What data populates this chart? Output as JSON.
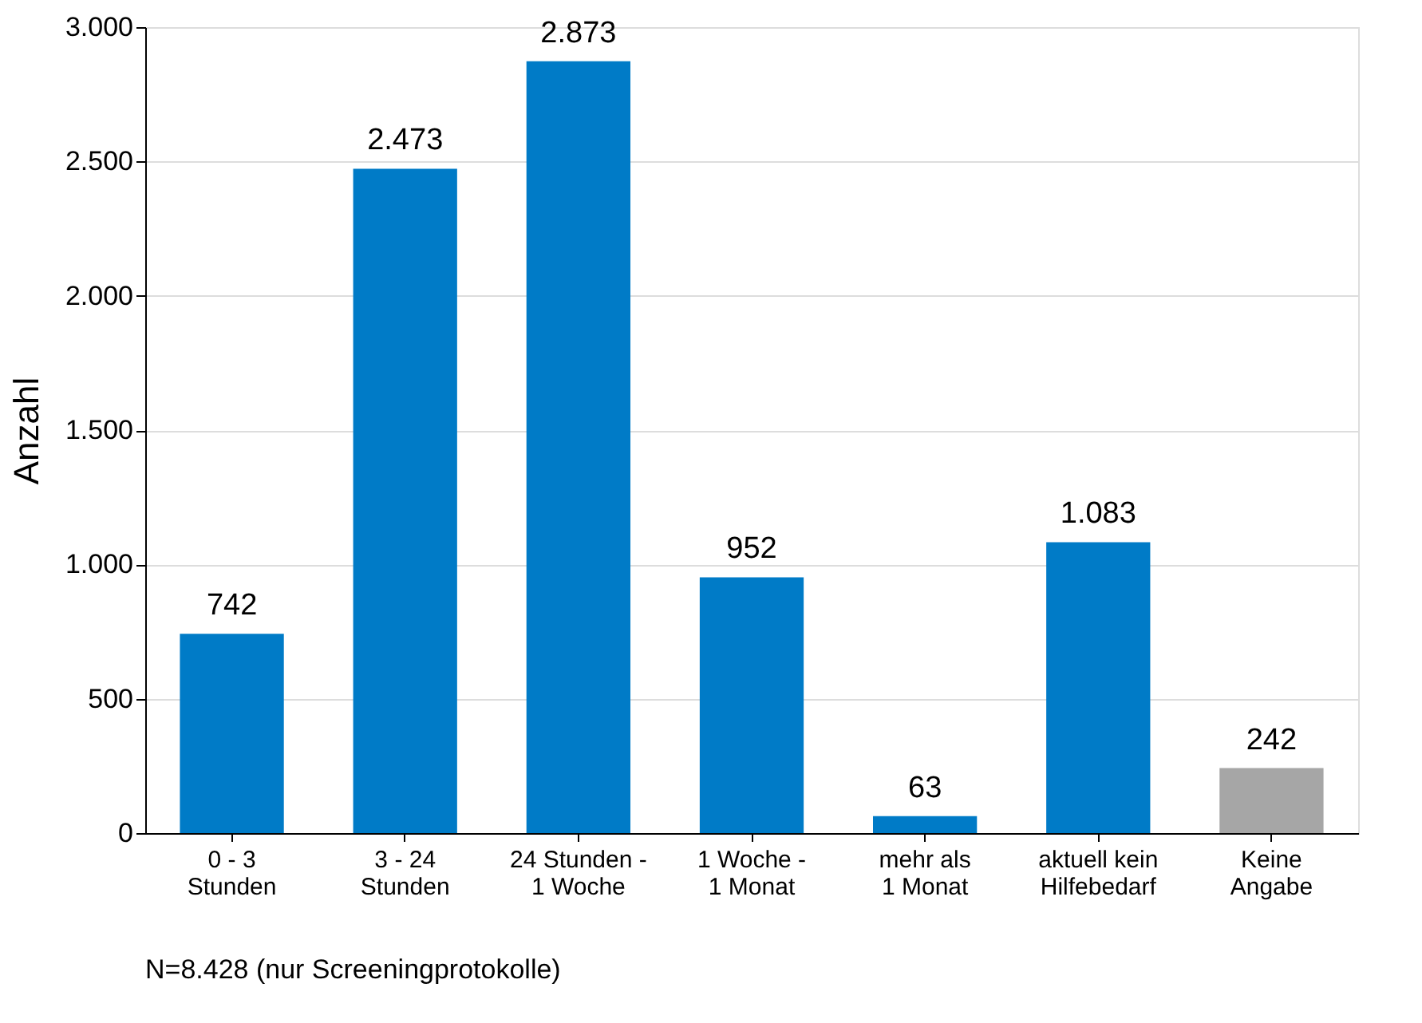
{
  "chart_data": {
    "type": "bar",
    "ylabel": "Anzahl",
    "categories": [
      "0 - 3\nStunden",
      "3 - 24\nStunden",
      "24 Stunden -\n1 Woche",
      "1 Woche -\n1 Monat",
      "mehr als\n1 Monat",
      "aktuell kein\nHilfebedarf",
      "Keine\nAngabe"
    ],
    "values": [
      742,
      2473,
      2873,
      952,
      63,
      1083,
      242
    ],
    "value_labels": [
      "742",
      "2.473",
      "2.873",
      "952",
      "63",
      "1.083",
      "242"
    ],
    "colors": [
      "#007bc7",
      "#007bc7",
      "#007bc7",
      "#007bc7",
      "#007bc7",
      "#007bc7",
      "#a6a6a6"
    ],
    "ylim": [
      0,
      3000
    ],
    "yticks": [
      0,
      500,
      {
        "value": 1000,
        "label": "1.000"
      },
      {
        "value": 1500,
        "label": "1.500"
      },
      {
        "value": 2000,
        "label": "2.000"
      },
      {
        "value": 2500,
        "label": "2.500"
      },
      {
        "value": 3000,
        "label": "3.000"
      }
    ],
    "grid": "y",
    "annotations": [
      "N=8.428 (nur Screeningprotokolle)"
    ]
  }
}
